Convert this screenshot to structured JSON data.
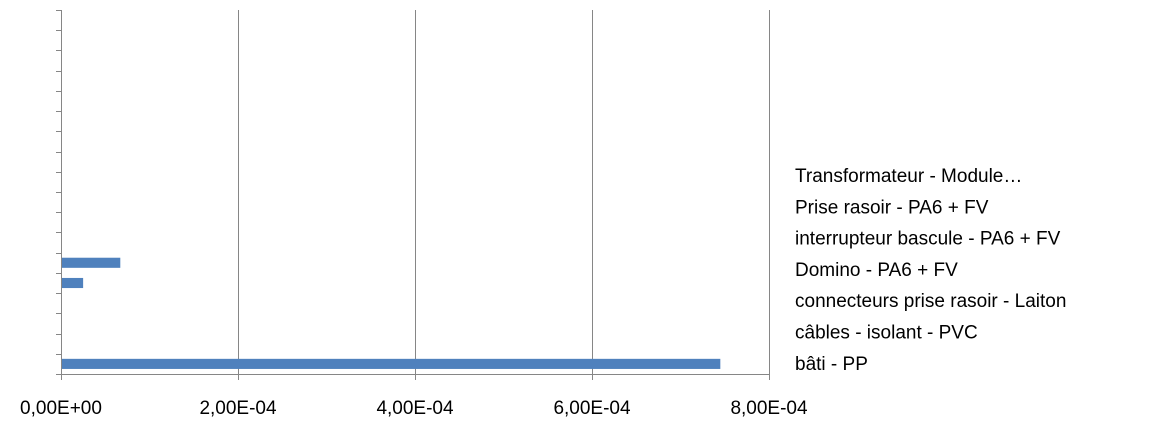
{
  "chart_data": {
    "type": "bar",
    "orientation": "horizontal",
    "title": "",
    "xlabel": "",
    "ylabel": "",
    "xlim": [
      0,
      0.0008
    ],
    "x_ticks": [
      0,
      0.0002,
      0.0004,
      0.0006,
      0.0008
    ],
    "x_tick_labels": [
      "0,00E+00",
      "2,00E-04",
      "4,00E-04",
      "6,00E-04",
      "8,00E-04"
    ],
    "category_slots": 18,
    "grid": "vertical-major",
    "legend_position": "right",
    "bar_color": "#4F81BD",
    "bars": [
      {
        "slot": 0,
        "value": 0.000745
      },
      {
        "slot": 4,
        "value": 2.5e-05
      },
      {
        "slot": 5,
        "value": 6.7e-05
      }
    ],
    "legend": [
      "Transformateur - Module…",
      "Prise rasoir - PA6 + FV",
      "interrupteur bascule - PA6 + FV",
      "Domino - PA6 + FV",
      "connecteurs prise rasoir - Laiton",
      "câbles - isolant - PVC",
      "bâti - PP"
    ]
  }
}
